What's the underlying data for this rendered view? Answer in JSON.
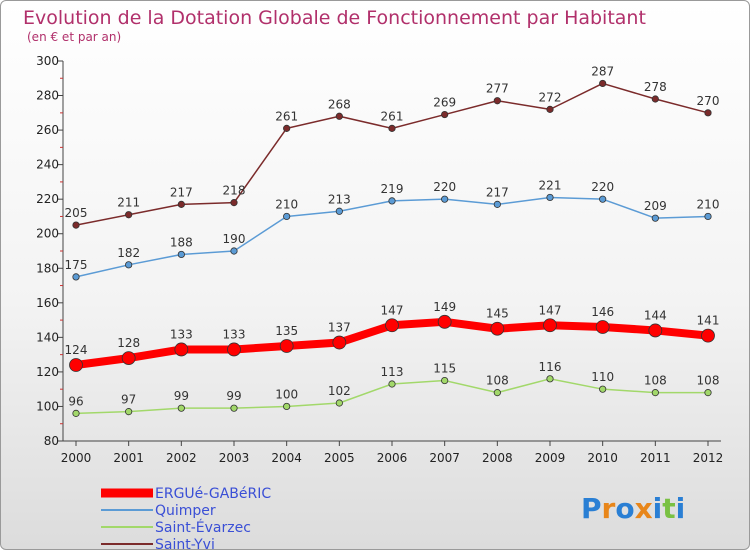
{
  "chart_data": {
    "type": "line",
    "title": "Evolution de la Dotation Globale de Fonctionnement par Habitant",
    "subtitle": "(en € et par an)",
    "xlabel": "",
    "ylabel": "",
    "ylim": [
      80,
      300
    ],
    "yticks": [
      80,
      100,
      120,
      140,
      160,
      180,
      200,
      220,
      240,
      260,
      280,
      300
    ],
    "categories": [
      "2000",
      "2001",
      "2002",
      "2003",
      "2004",
      "2005",
      "2006",
      "2007",
      "2008",
      "2009",
      "2010",
      "2011",
      "2012"
    ],
    "series": [
      {
        "name": "ERGUé-GABéRIC",
        "color": "#ff0000",
        "values": [
          124,
          128,
          133,
          133,
          135,
          137,
          147,
          149,
          145,
          147,
          146,
          144,
          141
        ]
      },
      {
        "name": "Quimper",
        "color": "#5b9bd5",
        "values": [
          175,
          182,
          188,
          190,
          210,
          213,
          219,
          220,
          217,
          221,
          220,
          209,
          210
        ]
      },
      {
        "name": "Saint-Évarzec",
        "color": "#a2d86a",
        "values": [
          96,
          97,
          99,
          99,
          100,
          102,
          113,
          115,
          108,
          116,
          110,
          108,
          108
        ]
      },
      {
        "name": "Saint-Yvi",
        "color": "#7b2b2b",
        "values": [
          205,
          211,
          217,
          218,
          261,
          268,
          261,
          269,
          277,
          272,
          287,
          278,
          270
        ]
      }
    ],
    "legend_position": "bottom-left",
    "grid": false
  },
  "logo": {
    "letters": [
      "P",
      "r",
      "o",
      "x",
      "i",
      "t",
      "i"
    ],
    "colors": [
      "#2a7fd4",
      "#e8861a",
      "#2a7fd4",
      "#e8861a",
      "#2a7fd4",
      "#7ac143",
      "#2a7fd4"
    ]
  }
}
